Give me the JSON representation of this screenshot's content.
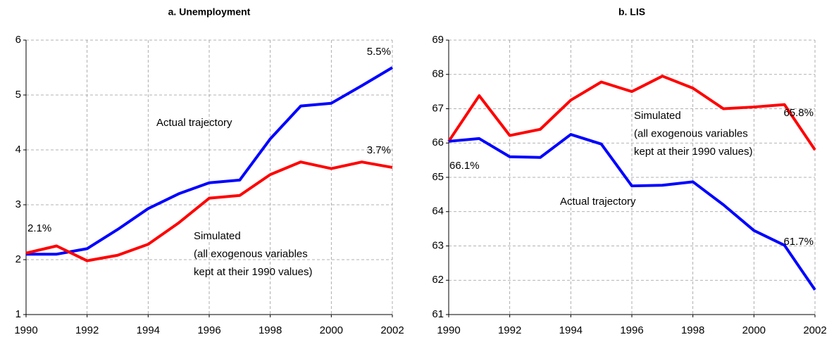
{
  "chart_data": [
    {
      "type": "line",
      "title": "a. Unemployment",
      "x": [
        1990,
        1991,
        1992,
        1993,
        1994,
        1995,
        1996,
        1997,
        1998,
        1999,
        2000,
        2001,
        2002
      ],
      "xlim": [
        1990,
        2002
      ],
      "xticks": [
        1990,
        1992,
        1994,
        1996,
        1998,
        2000,
        2002
      ],
      "ylim": [
        1,
        6
      ],
      "yticks": [
        1,
        2,
        3,
        4,
        5,
        6
      ],
      "grid": true,
      "series": [
        {
          "name": "Actual trajectory",
          "color": "#0000ff",
          "values": [
            2.1,
            2.1,
            2.2,
            2.55,
            2.93,
            3.2,
            3.4,
            3.45,
            4.2,
            4.8,
            4.85,
            5.17,
            5.5
          ],
          "value_labels": [
            "2.1%",
            null,
            null,
            null,
            null,
            null,
            null,
            null,
            null,
            null,
            null,
            null,
            "5.5%"
          ]
        },
        {
          "name": "Simulated",
          "color": "#ff0000",
          "values": [
            2.12,
            2.25,
            1.98,
            2.08,
            2.28,
            2.67,
            3.12,
            3.17,
            3.55,
            3.78,
            3.66,
            3.78,
            3.68
          ],
          "value_labels": [
            null,
            null,
            null,
            null,
            null,
            null,
            null,
            null,
            null,
            null,
            null,
            null,
            "3.7%"
          ]
        }
      ],
      "annotations": [
        [
          "Actual trajectory"
        ],
        [
          "Simulated",
          "(all exogenous variables",
          "kept at their 1990 values)"
        ]
      ]
    },
    {
      "type": "line",
      "title": "b. LIS",
      "x": [
        1990,
        1991,
        1992,
        1993,
        1994,
        1995,
        1996,
        1997,
        1998,
        1999,
        2000,
        2001,
        2002
      ],
      "xlim": [
        1990,
        2002
      ],
      "xticks": [
        1990,
        1992,
        1994,
        1996,
        1998,
        2000,
        2002
      ],
      "ylim": [
        61,
        69
      ],
      "yticks": [
        61,
        62,
        63,
        64,
        65,
        66,
        67,
        68,
        69
      ],
      "grid": true,
      "series": [
        {
          "name": "Simulated",
          "color": "#ff0000",
          "values": [
            66.05,
            67.38,
            66.22,
            66.4,
            67.25,
            67.78,
            67.5,
            67.95,
            67.6,
            67.0,
            67.05,
            67.12,
            65.8
          ],
          "value_labels": [
            null,
            null,
            null,
            null,
            null,
            null,
            null,
            null,
            null,
            null,
            null,
            null,
            "65.8%"
          ]
        },
        {
          "name": "Actual trajectory",
          "color": "#0000ff",
          "values": [
            66.05,
            66.13,
            65.6,
            65.58,
            66.25,
            65.97,
            64.75,
            64.77,
            64.87,
            64.2,
            63.45,
            63.02,
            61.72
          ],
          "value_labels": [
            "66.1%",
            null,
            null,
            null,
            null,
            null,
            null,
            null,
            null,
            null,
            null,
            null,
            "61.7%"
          ]
        }
      ],
      "annotations": [
        [
          "Simulated",
          "(all exogenous variables",
          "kept at their 1990 values)"
        ],
        [
          "Actual trajectory"
        ]
      ]
    }
  ]
}
